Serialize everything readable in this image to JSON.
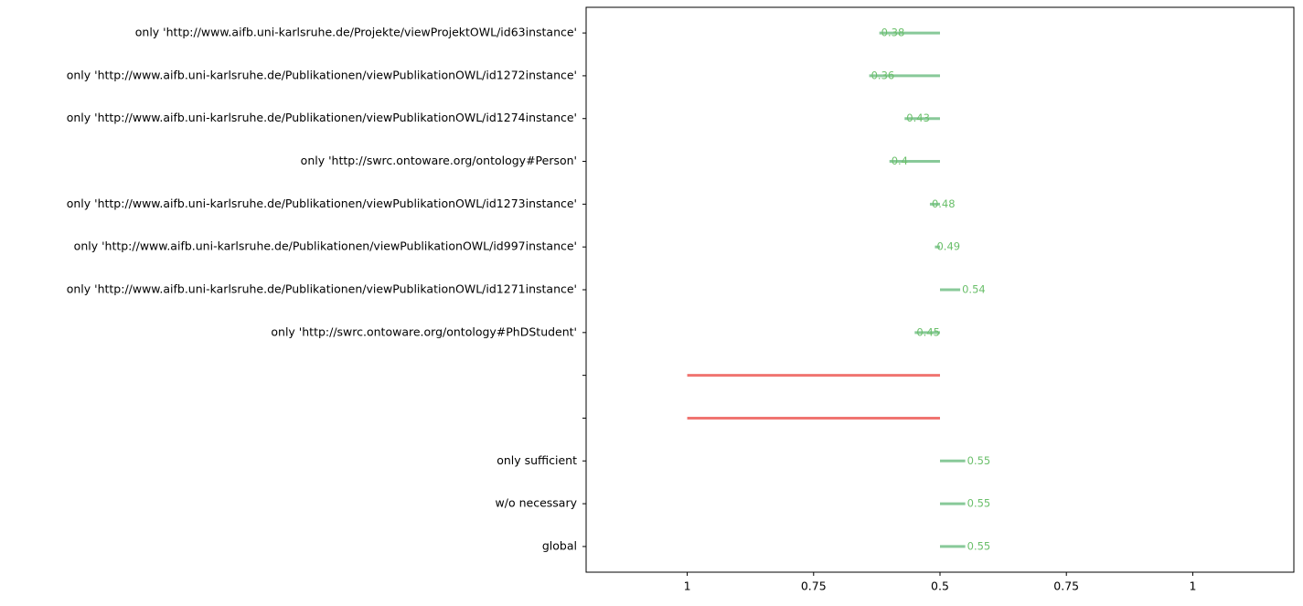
{
  "chart_data": {
    "type": "diverging-line",
    "categories": [
      "global",
      "w/o necessary",
      "only sufficient",
      null,
      null,
      "only 'http://swrc.ontoware.org/ontology#PhDStudent'",
      "only 'http://www.aifb.uni-karlsruhe.de/Publikationen/viewPublikationOWL/id1271instance'",
      "only 'http://www.aifb.uni-karlsruhe.de/Publikationen/viewPublikationOWL/id997instance'",
      "only 'http://www.aifb.uni-karlsruhe.de/Publikationen/viewPublikationOWL/id1273instance'",
      "only 'http://swrc.ontoware.org/ontology#Person'",
      "only 'http://www.aifb.uni-karlsruhe.de/Publikationen/viewPublikationOWL/id1274instance'",
      "only 'http://www.aifb.uni-karlsruhe.de/Publikationen/viewPublikationOWL/id1272instance'",
      "only 'http://www.aifb.uni-karlsruhe.de/Projekte/viewProjektOWL/id63instance'"
    ],
    "series": [
      {
        "side": "right",
        "color": "#88c999",
        "label_color": "#6abf6a",
        "values": [
          0.55,
          0.55,
          0.55,
          null,
          null,
          0.45,
          0.54,
          0.49,
          0.48,
          0.4,
          0.43,
          0.36,
          0.38
        ]
      },
      {
        "side": "left",
        "color": "#f07470",
        "values": [
          null,
          null,
          null,
          1,
          1,
          null,
          null,
          null,
          null,
          null,
          null,
          null,
          null
        ]
      }
    ],
    "center": 0.5,
    "xlim_left": 1.2,
    "xlim_right": 1.2,
    "left_xticks": [
      1,
      0.75
    ],
    "right_xticks": [
      0.75,
      1
    ]
  }
}
